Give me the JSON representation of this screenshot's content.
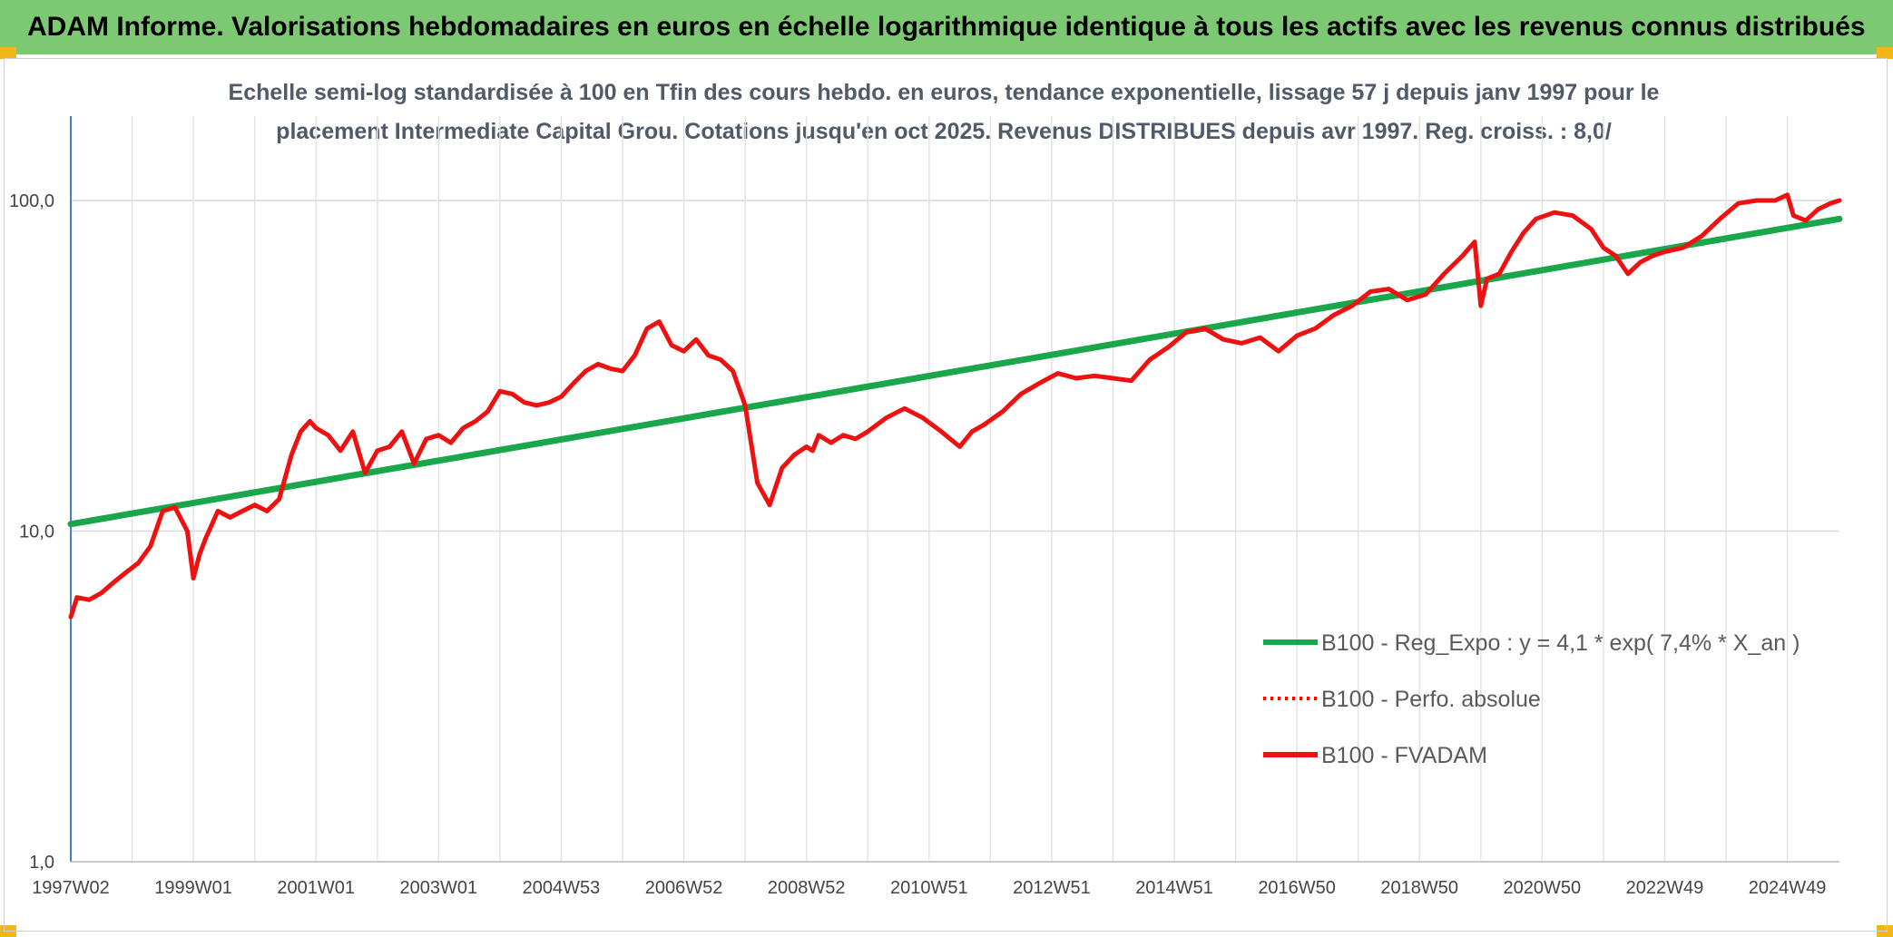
{
  "header": {
    "title": "ADAM Informe. Valorisations hebdomadaires en euros en échelle logarithmique identique à tous les actifs avec les revenus connus distribués"
  },
  "chart_data": {
    "type": "line",
    "title_line1": "Echelle semi-log standardisée à 100 en Tfin des cours hebdo. en euros, tendance exponentielle, lissage 57 j depuis janv 1997 pour le",
    "title_line2": "placement Intermediate Capital Grou. Cotations jusqu'en oct 2025. Revenus DISTRIBUES depuis avr 1997. Reg. croiss. : 8,0/",
    "y_scale": "log",
    "ylim": [
      1,
      180
    ],
    "xlim": [
      1997.0,
      2025.85
    ],
    "grid": true,
    "legend_position": "center-right",
    "y_ticks": [
      {
        "value": 1,
        "label": "1,0"
      },
      {
        "value": 10,
        "label": "10,0"
      },
      {
        "value": 100,
        "label": "100,0"
      }
    ],
    "x_ticks": [
      {
        "value": 1997.0,
        "label": "1997W02"
      },
      {
        "value": 1999.0,
        "label": "1999W01"
      },
      {
        "value": 2001.0,
        "label": "2001W01"
      },
      {
        "value": 2003.0,
        "label": "2003W01"
      },
      {
        "value": 2005.0,
        "label": "2004W53"
      },
      {
        "value": 2007.0,
        "label": "2006W52"
      },
      {
        "value": 2009.0,
        "label": "2008W52"
      },
      {
        "value": 2011.0,
        "label": "2010W51"
      },
      {
        "value": 2013.0,
        "label": "2012W51"
      },
      {
        "value": 2015.0,
        "label": "2014W51"
      },
      {
        "value": 2017.0,
        "label": "2016W50"
      },
      {
        "value": 2019.0,
        "label": "2018W50"
      },
      {
        "value": 2021.0,
        "label": "2020W50"
      },
      {
        "value": 2023.0,
        "label": "2022W49"
      },
      {
        "value": 2025.0,
        "label": "2024W49"
      }
    ],
    "series": [
      {
        "name": "B100 - Reg_Expo : y = 4,1 * exp( 7,4% *  X_an )",
        "color": "#1aa64a",
        "style": "solid",
        "x": [
          1997.0,
          2025.85
        ],
        "y": [
          10.5,
          88
        ]
      },
      {
        "name": "B100 - Perfo. absolue",
        "color": "#ff0000",
        "style": "dotted",
        "x": [],
        "y": []
      },
      {
        "name": "B100 - FVADAM",
        "color": "#ee1111",
        "style": "solid",
        "x": [
          1997.0,
          1997.1,
          1997.3,
          1997.5,
          1997.7,
          1997.9,
          1998.1,
          1998.3,
          1998.5,
          1998.7,
          1998.9,
          1999.0,
          1999.1,
          1999.2,
          1999.4,
          1999.6,
          1999.8,
          2000.0,
          2000.2,
          2000.4,
          2000.6,
          2000.75,
          2000.9,
          2001.0,
          2001.2,
          2001.4,
          2001.6,
          2001.8,
          2002.0,
          2002.2,
          2002.4,
          2002.6,
          2002.8,
          2003.0,
          2003.2,
          2003.4,
          2003.6,
          2003.8,
          2004.0,
          2004.2,
          2004.4,
          2004.6,
          2004.8,
          2005.0,
          2005.2,
          2005.4,
          2005.6,
          2005.8,
          2006.0,
          2006.2,
          2006.4,
          2006.6,
          2006.8,
          2007.0,
          2007.2,
          2007.4,
          2007.6,
          2007.8,
          2008.0,
          2008.2,
          2008.4,
          2008.6,
          2008.8,
          2009.0,
          2009.1,
          2009.2,
          2009.4,
          2009.6,
          2009.8,
          2010.0,
          2010.3,
          2010.6,
          2010.9,
          2011.2,
          2011.5,
          2011.7,
          2011.9,
          2012.2,
          2012.5,
          2012.8,
          2013.1,
          2013.4,
          2013.7,
          2014.0,
          2014.3,
          2014.6,
          2014.9,
          2015.2,
          2015.5,
          2015.8,
          2016.1,
          2016.4,
          2016.7,
          2017.0,
          2017.3,
          2017.6,
          2017.9,
          2018.2,
          2018.5,
          2018.8,
          2019.1,
          2019.4,
          2019.7,
          2019.9,
          2020.0,
          2020.1,
          2020.3,
          2020.5,
          2020.7,
          2020.9,
          2021.2,
          2021.5,
          2021.8,
          2022.0,
          2022.2,
          2022.4,
          2022.6,
          2022.8,
          2023.0,
          2023.3,
          2023.6,
          2023.9,
          2024.2,
          2024.5,
          2024.8,
          2025.0,
          2025.1,
          2025.3,
          2025.5,
          2025.7,
          2025.85
        ],
        "y": [
          5.5,
          6.3,
          6.2,
          6.5,
          7.0,
          7.5,
          8.0,
          9.0,
          11.5,
          11.8,
          10.0,
          7.2,
          8.5,
          9.5,
          11.5,
          11.0,
          11.5,
          12.0,
          11.5,
          12.5,
          17.0,
          20.0,
          21.5,
          20.5,
          19.5,
          17.5,
          20.0,
          15.0,
          17.5,
          18.0,
          20.0,
          16.0,
          19.0,
          19.5,
          18.5,
          20.5,
          21.5,
          23.0,
          26.5,
          26.0,
          24.5,
          24.0,
          24.5,
          25.5,
          28.0,
          30.5,
          32.0,
          31.0,
          30.5,
          34.0,
          41.0,
          43.0,
          36.5,
          35.0,
          38.0,
          34.0,
          33.0,
          30.5,
          24.0,
          14.0,
          12.0,
          15.5,
          17.0,
          18.0,
          17.5,
          19.5,
          18.5,
          19.5,
          19.0,
          20.0,
          22.0,
          23.5,
          22.0,
          20.0,
          18.0,
          20.0,
          21.0,
          23.0,
          26.0,
          28.0,
          30.0,
          29.0,
          29.5,
          29.0,
          28.5,
          33.0,
          36.0,
          40.0,
          41.0,
          38.0,
          37.0,
          38.5,
          35.0,
          39.0,
          41.0,
          45.0,
          48.0,
          53.0,
          54.0,
          50.0,
          52.0,
          60.0,
          68.0,
          75.0,
          48.0,
          58.0,
          60.0,
          70.0,
          80.0,
          88.0,
          92.0,
          90.0,
          82.0,
          72.0,
          68.0,
          60.0,
          65.0,
          68.0,
          70.0,
          72.0,
          78.0,
          88.0,
          98.0,
          100.0,
          100.0,
          104.0,
          90.0,
          87.0,
          94.0,
          98.0,
          100.0
        ]
      }
    ]
  }
}
